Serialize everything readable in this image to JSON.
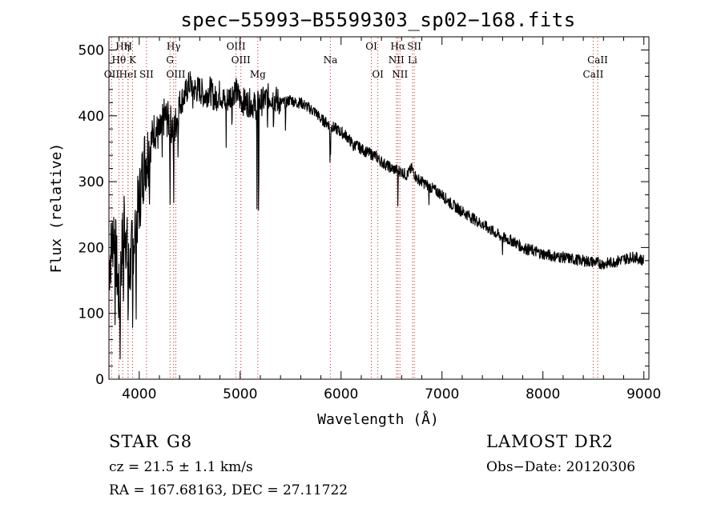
{
  "chart_data": {
    "type": "line",
    "title": "spec−55993−B5599303_sp02−168.fits",
    "xlabel": "Wavelength (Å)",
    "ylabel": "Flux (relative)",
    "xlim": [
      3700,
      9050
    ],
    "ylim": [
      0,
      520
    ],
    "xticks": [
      4000,
      5000,
      6000,
      7000,
      8000,
      9000
    ],
    "yticks": [
      0,
      100,
      200,
      300,
      400,
      500
    ],
    "grid": false,
    "series": [
      {
        "name": "flux",
        "x": [
          3700,
          3750,
          3800,
          3850,
          3900,
          3950,
          4000,
          4050,
          4100,
          4150,
          4200,
          4250,
          4300,
          4350,
          4400,
          4450,
          4500,
          4550,
          4600,
          4650,
          4700,
          4750,
          4800,
          4850,
          4900,
          4950,
          5000,
          5050,
          5100,
          5150,
          5200,
          5250,
          5300,
          5350,
          5400,
          5450,
          5500,
          5550,
          5600,
          5650,
          5700,
          5750,
          5800,
          5850,
          5900,
          5950,
          6000,
          6050,
          6100,
          6150,
          6200,
          6250,
          6300,
          6350,
          6400,
          6450,
          6500,
          6550,
          6600,
          6650,
          6700,
          6750,
          6800,
          6850,
          6900,
          6950,
          7000,
          7100,
          7200,
          7300,
          7400,
          7500,
          7600,
          7700,
          7800,
          7900,
          8000,
          8100,
          8200,
          8300,
          8400,
          8500,
          8600,
          8700,
          8800,
          8900,
          9000
        ],
        "y": [
          170,
          230,
          120,
          250,
          160,
          220,
          270,
          330,
          350,
          380,
          370,
          400,
          390,
          380,
          420,
          430,
          450,
          440,
          440,
          430,
          440,
          425,
          435,
          420,
          430,
          440,
          425,
          420,
          420,
          415,
          420,
          425,
          430,
          425,
          420,
          420,
          425,
          420,
          420,
          415,
          410,
          405,
          395,
          390,
          385,
          380,
          375,
          370,
          360,
          355,
          350,
          345,
          342,
          338,
          330,
          325,
          320,
          318,
          315,
          310,
          320,
          305,
          300,
          295,
          290,
          285,
          280,
          265,
          255,
          245,
          235,
          225,
          215,
          210,
          200,
          195,
          190,
          187,
          185,
          182,
          180,
          178,
          175,
          178,
          182,
          186,
          180
        ]
      }
    ],
    "lines": [
      {
        "label": "OII",
        "wavelength": 3727,
        "row": 3
      },
      {
        "label": "Hη",
        "wavelength": 3836,
        "row": 1
      },
      {
        "label": "Hθ",
        "wavelength": 3798,
        "row": 2
      },
      {
        "label": "H",
        "wavelength": 3889,
        "row": 1
      },
      {
        "label": "K",
        "wavelength": 3934,
        "row": 2
      },
      {
        "label": "HeI",
        "wavelength": 3889,
        "row": 3
      },
      {
        "label": "SII",
        "wavelength": 4072,
        "row": 3
      },
      {
        "label": "Hγ",
        "wavelength": 4341,
        "row": 1
      },
      {
        "label": "G",
        "wavelength": 4305,
        "row": 2
      },
      {
        "label": "OIII",
        "wavelength": 4363,
        "row": 3
      },
      {
        "label": "OIII",
        "wavelength": 4959,
        "row": 1
      },
      {
        "label": "OIII",
        "wavelength": 5007,
        "row": 2
      },
      {
        "label": "Mg",
        "wavelength": 5175,
        "row": 3
      },
      {
        "label": "Na",
        "wavelength": 5894,
        "row": 2
      },
      {
        "label": "OI",
        "wavelength": 6300,
        "row": 1
      },
      {
        "label": "OI",
        "wavelength": 6364,
        "row": 3
      },
      {
        "label": "Hα",
        "wavelength": 6563,
        "row": 1
      },
      {
        "label": "SII",
        "wavelength": 6725,
        "row": 1
      },
      {
        "label": "NII",
        "wavelength": 6548,
        "row": 2
      },
      {
        "label": "Li",
        "wavelength": 6708,
        "row": 2
      },
      {
        "label": "NII",
        "wavelength": 6583,
        "row": 3
      },
      {
        "label": "CaII",
        "wavelength": 8542,
        "row": 2
      },
      {
        "label": "CaII",
        "wavelength": 8498,
        "row": 3
      }
    ]
  },
  "info": {
    "object_type": "STAR",
    "subclass": "G8",
    "survey": "LAMOST DR2",
    "redshift": "cz = 21.5 ± 1.1 km/s",
    "obs_date": "Obs−Date: 20120306",
    "coords": "RA = 167.68163, DEC =  27.11722"
  },
  "colors": {
    "spectrum": "#000000",
    "line_marker": "#cc2020",
    "background": "#ffffff"
  }
}
